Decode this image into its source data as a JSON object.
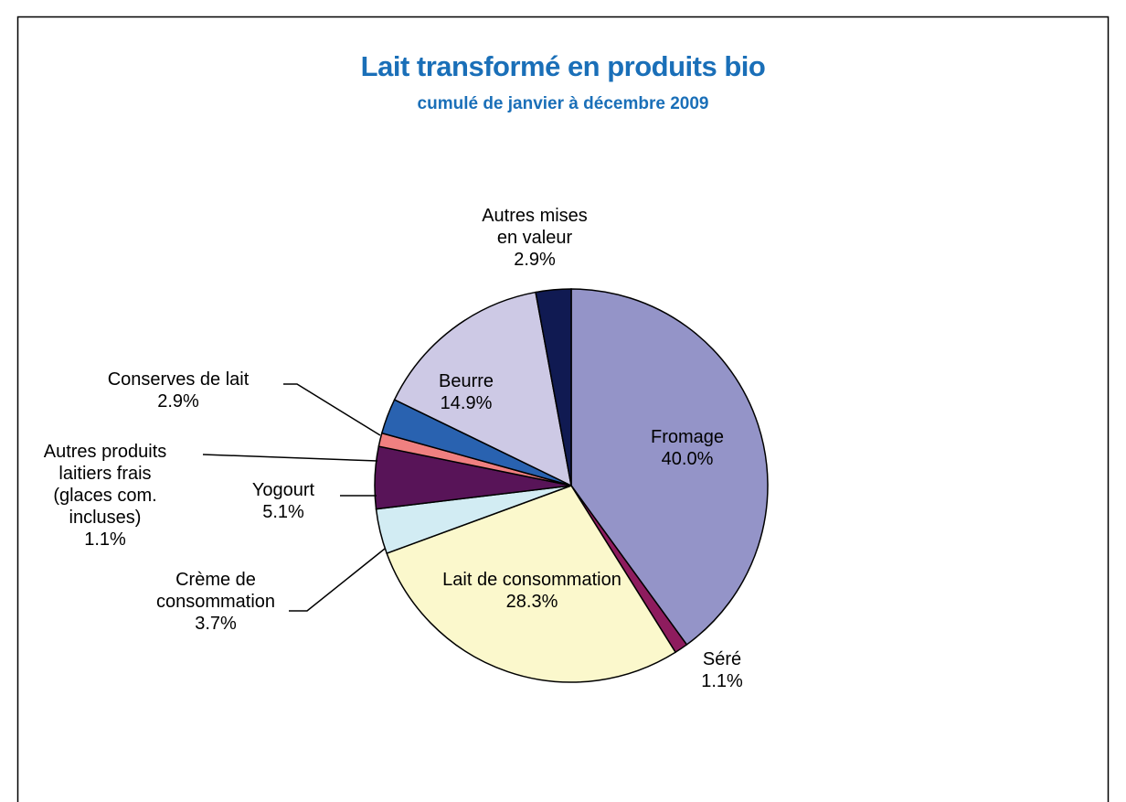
{
  "chart_data": {
    "type": "pie",
    "title": "Lait transformé en produits bio",
    "subtitle": "cumulé de janvier à décembre 2009",
    "categories": [
      "Fromage",
      "Séré",
      "Lait de consommation",
      "Crème de consommation",
      "Yogourt",
      "Autres produits laitiers frais (glaces com. incluses)",
      "Conserves de lait",
      "Beurre",
      "Autres mises en valeur"
    ],
    "values": [
      40.0,
      1.1,
      28.3,
      3.7,
      5.1,
      1.1,
      2.9,
      14.9,
      2.9
    ],
    "value_labels": [
      "40.0%",
      "1.1%",
      "28.3%",
      "3.7%",
      "5.1%",
      "1.1%",
      "2.9%",
      "14.9%",
      "2.9%"
    ],
    "colors": [
      "#9494c8",
      "#8e1c5e",
      "#fbf8cc",
      "#d2ecf3",
      "#581458",
      "#f08080",
      "#2962b0",
      "#cdc9e5",
      "#101a52"
    ]
  }
}
